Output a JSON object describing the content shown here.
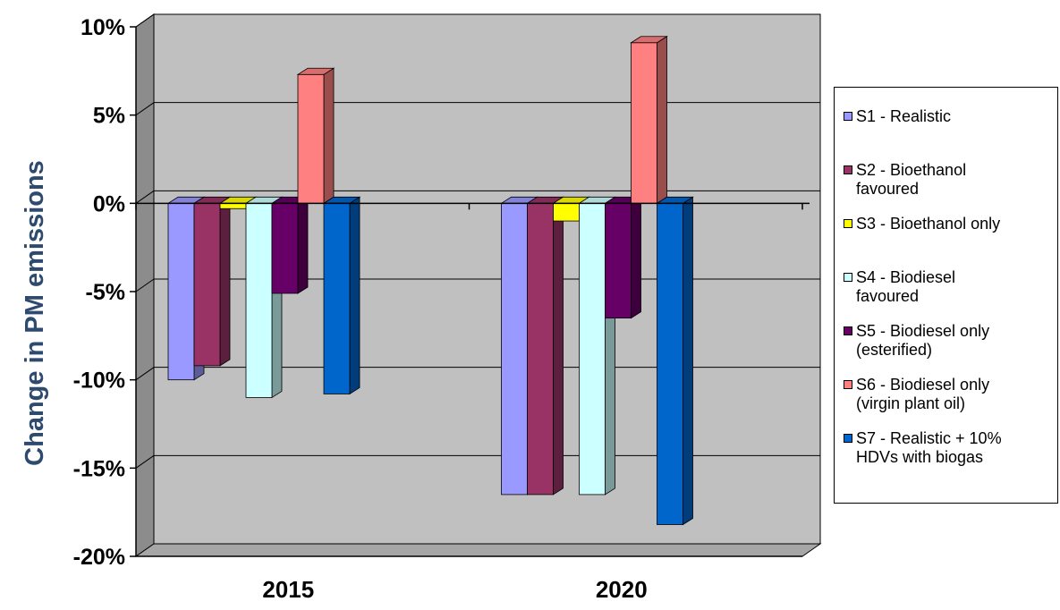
{
  "chart_data": {
    "type": "bar",
    "categories": [
      "2015",
      "2020"
    ],
    "ylabel": "Change in PM emissions",
    "xlabel": "",
    "ylim": [
      -20,
      10
    ],
    "yticks": [
      "10%",
      "5%",
      "0%",
      "-5%",
      "-10%",
      "-15%",
      "-20%"
    ],
    "grid": true,
    "legend_position": "right",
    "series": [
      {
        "name": "S1 - Realistic",
        "values": [
          -10,
          -16.5
        ],
        "color": "#9999ff"
      },
      {
        "name": "S2 - Bioethanol favoured",
        "values": [
          -9.2,
          -16.5
        ],
        "color": "#993366"
      },
      {
        "name": "S3 - Bioethanol only",
        "values": [
          -0.3,
          -1.0
        ],
        "color": "#ffff00"
      },
      {
        "name": "S4 - Biodiesel favoured",
        "values": [
          -11,
          -16.5
        ],
        "color": "#ccffff"
      },
      {
        "name": "S5 - Biodiesel only (esterified)",
        "values": [
          -5.1,
          -6.5
        ],
        "color": "#660066"
      },
      {
        "name": "S6 - Biodiesel only (virgin plant oil)",
        "values": [
          7.3,
          9.1
        ],
        "color": "#ff8080"
      },
      {
        "name": "S7 - Realistic + 10% HDVs with biogas",
        "values": [
          -10.8,
          -18.2
        ],
        "color": "#0066cc"
      }
    ],
    "legend_lines": [
      [
        "S1 - Realistic"
      ],
      [
        "S2 - Bioethanol",
        "favoured"
      ],
      [
        "S3 - Bioethanol only"
      ],
      [
        "S4 - Biodiesel",
        "favoured"
      ],
      [
        "S5 - Biodiesel only",
        "(esterified)"
      ],
      [
        "S6 - Biodiesel only",
        "(virgin plant oil)"
      ],
      [
        "S7 - Realistic + 10%",
        "HDVs with biogas"
      ]
    ],
    "colors": {
      "plot_background": "#c0c0c0",
      "wall_side": "#8c8c8c",
      "floor": "#a6a6a6",
      "ylabel_color": "#2e4a6e"
    }
  }
}
